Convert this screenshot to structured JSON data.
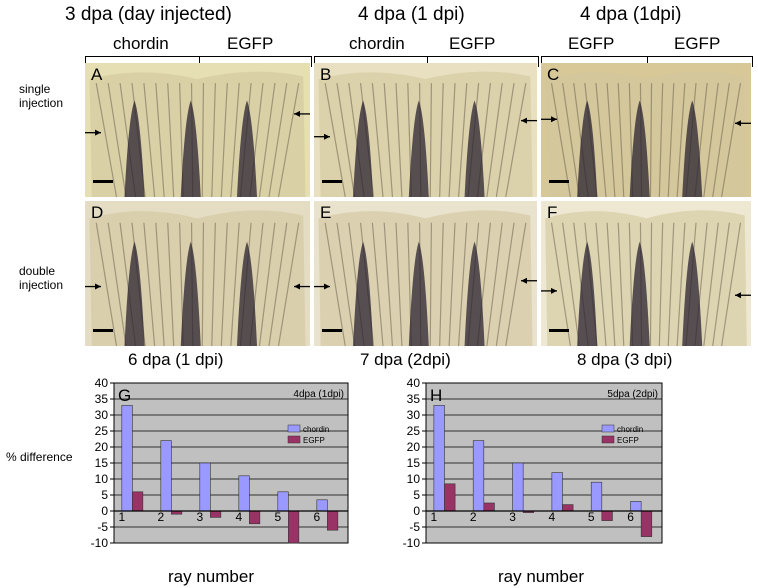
{
  "top_labels": [
    "3 dpa (day injected)",
    "4 dpa (1 dpi)",
    "4 dpa (1dpi)"
  ],
  "sub_labels": [
    [
      "chordin",
      "EGFP"
    ],
    [
      "chordin",
      "EGFP"
    ],
    [
      "EGFP",
      "EGFP"
    ]
  ],
  "row_labels": [
    "single\ninjection",
    "double\ninjection"
  ],
  "panel_letters": [
    "A",
    "B",
    "C",
    "D",
    "E",
    "F",
    "G",
    "H"
  ],
  "bottom_labels": [
    "6 dpa (1 dpi)",
    "7 dpa (2dpi)",
    "8 dpa (3 dpi)"
  ],
  "ylabel": "% difference",
  "xlabel": "ray number",
  "colors": {
    "chordin": "#9999ff",
    "egfp": "#993366",
    "plot_bg": "#c0c0c0"
  },
  "chart_data": [
    {
      "type": "bar",
      "label": "G",
      "annotation": "4dpa (1dpi)",
      "categories": [
        "1",
        "2",
        "3",
        "4",
        "5",
        "6"
      ],
      "series": [
        {
          "name": "chordin",
          "values": [
            33,
            22,
            15,
            11,
            6,
            3.5
          ]
        },
        {
          "name": "EGFP",
          "values": [
            6,
            -1,
            -2,
            -4,
            -10,
            -6
          ]
        }
      ],
      "ylim": [
        -10,
        40
      ],
      "yticks": [
        -10,
        -5,
        0,
        5,
        10,
        15,
        20,
        25,
        30,
        35,
        40
      ],
      "xlabel": "ray number",
      "ylabel": "% difference",
      "legend": "top-right",
      "grid": true
    },
    {
      "type": "bar",
      "label": "H",
      "annotation": "5dpa (2dpi)",
      "categories": [
        "1",
        "2",
        "3",
        "4",
        "5",
        "6"
      ],
      "series": [
        {
          "name": "chordin",
          "values": [
            33,
            22,
            15,
            12,
            9,
            3
          ]
        },
        {
          "name": "EGFP",
          "values": [
            8.5,
            2.5,
            -0.5,
            2,
            -3,
            -8
          ]
        }
      ],
      "ylim": [
        -10,
        40
      ],
      "yticks": [
        -10,
        -5,
        0,
        5,
        10,
        15,
        20,
        25,
        30,
        35,
        40
      ],
      "xlabel": "ray number",
      "legend": "top-right",
      "grid": true
    }
  ]
}
